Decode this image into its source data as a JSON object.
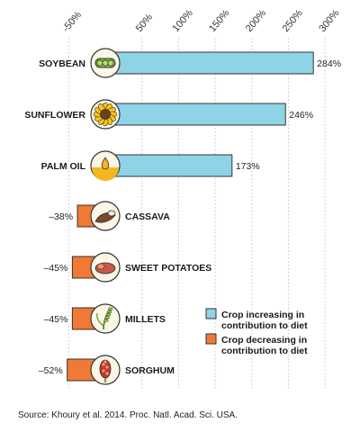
{
  "chart_data": {
    "type": "bar",
    "orientation": "horizontal",
    "categories": [
      "SOYBEAN",
      "SUNFLOWER",
      "PALM OIL",
      "CASSAVA",
      "SWEET POTATOES",
      "MILLETS",
      "SORGHUM"
    ],
    "values": [
      284,
      246,
      173,
      -38,
      -45,
      -45,
      -52
    ],
    "value_labels": [
      "284%",
      "246%",
      "173%",
      "–38%",
      "–45%",
      "–45%",
      "–52%"
    ],
    "icons": [
      "soybean-icon",
      "sunflower-icon",
      "palm-oil-drop-icon",
      "cassava-icon",
      "sweet-potato-icon",
      "millet-icon",
      "sorghum-icon"
    ],
    "xlim": [
      -50,
      300
    ],
    "ticks": [
      -50,
      50,
      100,
      150,
      200,
      250,
      300
    ],
    "tick_labels": [
      "-50%",
      "50%",
      "100%",
      "150%",
      "200%",
      "250%",
      "300%"
    ],
    "grid": "vertical dotted",
    "legend_position": "bottom-right",
    "legend": [
      {
        "lines": [
          "Crop increasing in",
          "contribution to diet"
        ],
        "color": "#8fd3e6"
      },
      {
        "lines": [
          "Crop decreasing in",
          "contribution to diet"
        ],
        "color": "#f07a35"
      }
    ],
    "colors": {
      "increase": "#8fd3e6",
      "decrease": "#f07a35",
      "outline": "#333333"
    },
    "source": "Source: Khoury et al. 2014. Proc. Natl. Acad. Sci. USA."
  }
}
